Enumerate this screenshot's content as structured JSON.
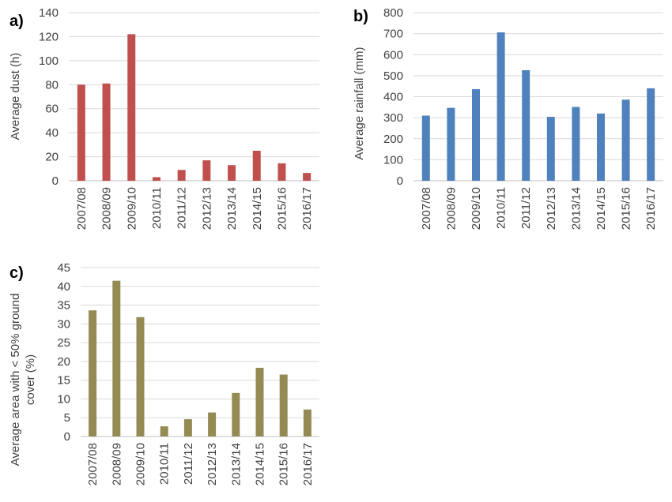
{
  "chart_data": [
    {
      "panel": "a)",
      "type": "bar",
      "ylabel": [
        "Average dust (h)"
      ],
      "categories": [
        "2007/08",
        "2008/09",
        "2009/10",
        "2010/11",
        "2011/12",
        "2012/13",
        "2013/14",
        "2014/15",
        "2015/16",
        "2016/17"
      ],
      "values": [
        80,
        81,
        122,
        3,
        9,
        17,
        13,
        25,
        14.5,
        6.5
      ],
      "ylim": [
        0,
        140
      ],
      "yticks": [
        0,
        20,
        40,
        60,
        80,
        100,
        120,
        140
      ],
      "grid": true,
      "color": "#c0504d"
    },
    {
      "panel": "b)",
      "type": "bar",
      "ylabel": [
        "Average rainfall (mm)"
      ],
      "categories": [
        "2007/08",
        "2008/09",
        "2009/10",
        "2010/11",
        "2011/12",
        "2012/13",
        "2013/14",
        "2014/15",
        "2015/16",
        "2016/17"
      ],
      "values": [
        310,
        347,
        436,
        706,
        526,
        304,
        351,
        320,
        386,
        440
      ],
      "ylim": [
        0,
        800
      ],
      "yticks": [
        0,
        100,
        200,
        300,
        400,
        500,
        600,
        700,
        800
      ],
      "grid": true,
      "color": "#4f81bd"
    },
    {
      "panel": "c)",
      "type": "bar",
      "ylabel": [
        "Average area with < 50% ground",
        "cover (%)"
      ],
      "categories": [
        "2007/08",
        "2008/09",
        "2009/10",
        "2010/11",
        "2011/12",
        "2012/13",
        "2013/14",
        "2014/15",
        "2015/16",
        "2016/17"
      ],
      "values": [
        33.6,
        41.5,
        31.8,
        2.7,
        4.6,
        6.4,
        11.6,
        18.3,
        16.5,
        7.2
      ],
      "ylim": [
        0,
        45
      ],
      "yticks": [
        0,
        5,
        10,
        15,
        20,
        25,
        30,
        35,
        40,
        45
      ],
      "grid": true,
      "color": "#948a54"
    }
  ]
}
